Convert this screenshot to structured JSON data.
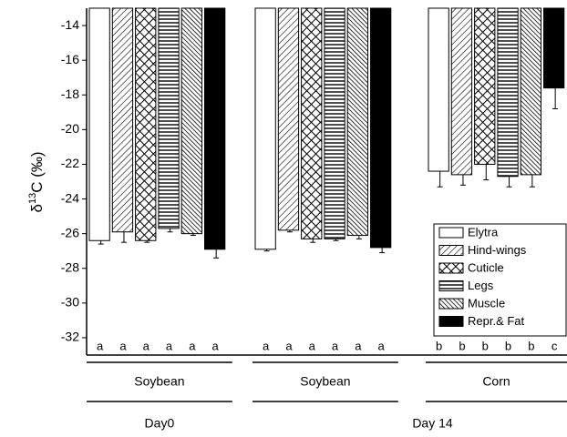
{
  "chart_data": {
    "type": "bar",
    "ylabel": {
      "prefix": "δ",
      "sup": "13",
      "suffix": "C (‰)"
    },
    "categories": [
      "Soybean",
      "Soybean",
      "Corn"
    ],
    "days": [
      {
        "label": "Day0",
        "groups": [
          0
        ]
      },
      {
        "label": "Day 14",
        "groups": [
          1,
          2
        ]
      }
    ],
    "ylim": [
      -33,
      -13
    ],
    "yticks": [
      -14,
      -16,
      -18,
      -20,
      -22,
      -24,
      -26,
      -28,
      -30,
      -32
    ],
    "legend": "bottom-right",
    "series": [
      {
        "name": "Elytra",
        "color": "#ffffff",
        "pattern": "none",
        "values": [
          -26.4,
          -26.9,
          -22.4
        ],
        "errors": [
          0.2,
          0.1,
          0.9
        ],
        "letters": [
          "a",
          "a",
          "b"
        ]
      },
      {
        "name": "Hind-wings",
        "color": "#000000",
        "pattern": "diag",
        "values": [
          -25.9,
          -25.8,
          -22.6
        ],
        "errors": [
          0.6,
          0.1,
          0.6
        ],
        "letters": [
          "a",
          "a",
          "b"
        ]
      },
      {
        "name": "Cuticle",
        "color": "#000000",
        "pattern": "cross",
        "values": [
          -26.4,
          -26.3,
          -22.0
        ],
        "errors": [
          0.1,
          0.2,
          0.9
        ],
        "letters": [
          "a",
          "a",
          "b"
        ]
      },
      {
        "name": "Legs",
        "color": "#000000",
        "pattern": "horiz",
        "values": [
          -25.7,
          -26.3,
          -22.7
        ],
        "errors": [
          0.2,
          0.1,
          0.6
        ],
        "letters": [
          "a",
          "a",
          "b"
        ]
      },
      {
        "name": "Muscle",
        "color": "#000000",
        "pattern": "dense",
        "values": [
          -26.0,
          -26.1,
          -22.6
        ],
        "errors": [
          0.1,
          0.2,
          0.7
        ],
        "letters": [
          "a",
          "a",
          "b"
        ]
      },
      {
        "name": "Repr.& Fat",
        "color": "#000000",
        "pattern": "solid",
        "values": [
          -26.9,
          -26.8,
          -17.6
        ],
        "errors": [
          0.5,
          0.3,
          1.2
        ],
        "letters": [
          "a",
          "a",
          "c"
        ]
      }
    ]
  }
}
